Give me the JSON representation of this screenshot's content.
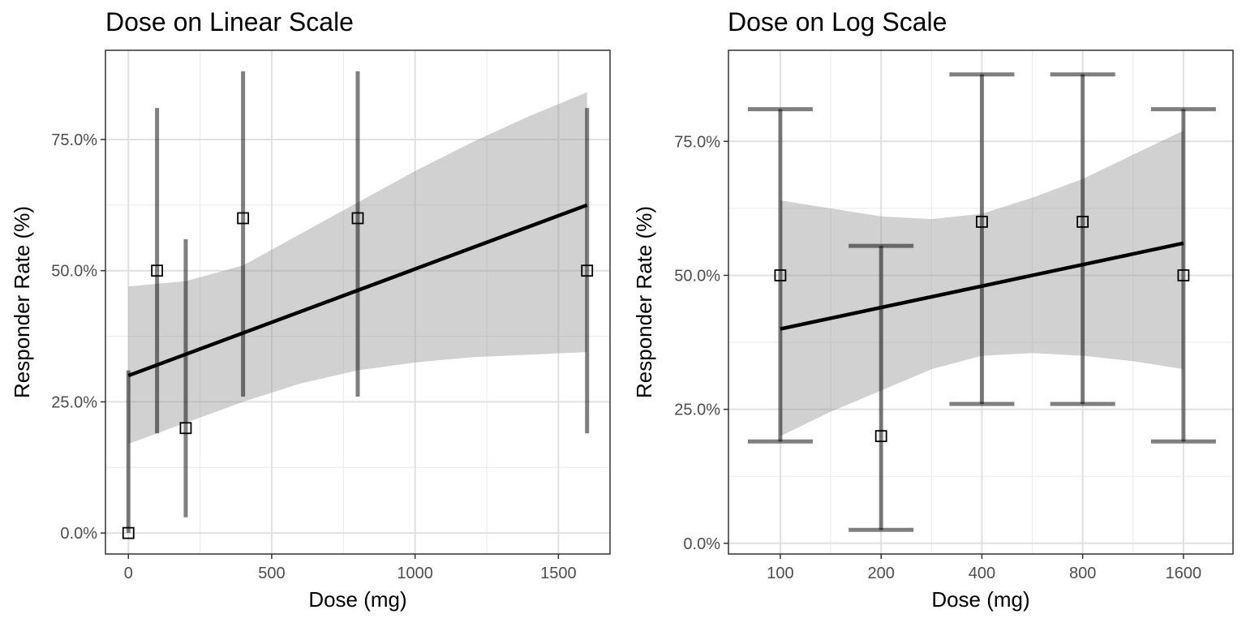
{
  "chart_data": [
    {
      "type": "scatter",
      "title": "Dose on Linear Scale",
      "xlabel": "Dose (mg)",
      "ylabel": "Responder Rate (%)",
      "x_scale": "linear",
      "xlim": [
        -80,
        1680
      ],
      "ylim": [
        -0.04,
        0.92
      ],
      "x_ticks": [
        0,
        500,
        1000,
        1500
      ],
      "x_tick_labels": [
        "0",
        "500",
        "1000",
        "1500"
      ],
      "y_ticks": [
        0,
        0.25,
        0.5,
        0.75
      ],
      "y_tick_labels": [
        "0.0%",
        "25.0%",
        "50.0%",
        "75.0%"
      ],
      "grid": true,
      "error_bar_caps": false,
      "points": [
        {
          "x": 0,
          "y": 0.0,
          "lower": 0.0,
          "upper": 0.31
        },
        {
          "x": 100,
          "y": 0.5,
          "lower": 0.19,
          "upper": 0.81
        },
        {
          "x": 200,
          "y": 0.2,
          "lower": 0.03,
          "upper": 0.56
        },
        {
          "x": 400,
          "y": 0.6,
          "lower": 0.26,
          "upper": 0.88
        },
        {
          "x": 800,
          "y": 0.6,
          "lower": 0.26,
          "upper": 0.88
        },
        {
          "x": 1600,
          "y": 0.5,
          "lower": 0.19,
          "upper": 0.81
        }
      ],
      "fit_line": {
        "x": [
          0,
          1600
        ],
        "y": [
          0.3,
          0.625
        ]
      },
      "confidence_band": [
        {
          "x": 0,
          "lower": 0.17,
          "upper": 0.47
        },
        {
          "x": 200,
          "lower": 0.21,
          "upper": 0.48
        },
        {
          "x": 400,
          "lower": 0.25,
          "upper": 0.51
        },
        {
          "x": 600,
          "lower": 0.285,
          "upper": 0.57
        },
        {
          "x": 800,
          "lower": 0.31,
          "upper": 0.63
        },
        {
          "x": 1000,
          "lower": 0.325,
          "upper": 0.69
        },
        {
          "x": 1200,
          "lower": 0.335,
          "upper": 0.745
        },
        {
          "x": 1400,
          "lower": 0.34,
          "upper": 0.795
        },
        {
          "x": 1600,
          "lower": 0.345,
          "upper": 0.84
        }
      ]
    },
    {
      "type": "scatter",
      "title": "Dose on Log Scale",
      "xlabel": "Dose (mg)",
      "ylabel": "Responder Rate (%)",
      "x_scale": "log2",
      "xlim": [
        70,
        2250
      ],
      "ylim": [
        -0.02,
        0.92
      ],
      "x_ticks": [
        100,
        200,
        400,
        800,
        1600
      ],
      "x_tick_labels": [
        "100",
        "200",
        "400",
        "800",
        "1600"
      ],
      "y_ticks": [
        0,
        0.25,
        0.5,
        0.75
      ],
      "y_tick_labels": [
        "0.0%",
        "25.0%",
        "50.0%",
        "75.0%"
      ],
      "grid": true,
      "error_bar_caps": true,
      "points": [
        {
          "x": 100,
          "y": 0.5,
          "lower": 0.19,
          "upper": 0.81
        },
        {
          "x": 200,
          "y": 0.2,
          "lower": 0.025,
          "upper": 0.555
        },
        {
          "x": 400,
          "y": 0.6,
          "lower": 0.26,
          "upper": 0.875
        },
        {
          "x": 800,
          "y": 0.6,
          "lower": 0.26,
          "upper": 0.875
        },
        {
          "x": 1600,
          "y": 0.5,
          "lower": 0.19,
          "upper": 0.81
        }
      ],
      "fit_line": {
        "x": [
          100,
          1600
        ],
        "y": [
          0.4,
          0.56
        ]
      },
      "confidence_band": [
        {
          "x": 100,
          "lower": 0.2,
          "upper": 0.64
        },
        {
          "x": 141,
          "lower": 0.245,
          "upper": 0.625
        },
        {
          "x": 200,
          "lower": 0.285,
          "upper": 0.61
        },
        {
          "x": 283,
          "lower": 0.325,
          "upper": 0.605
        },
        {
          "x": 400,
          "lower": 0.35,
          "upper": 0.615
        },
        {
          "x": 566,
          "lower": 0.355,
          "upper": 0.645
        },
        {
          "x": 800,
          "lower": 0.35,
          "upper": 0.68
        },
        {
          "x": 1131,
          "lower": 0.34,
          "upper": 0.725
        },
        {
          "x": 1600,
          "lower": 0.325,
          "upper": 0.77
        }
      ]
    }
  ]
}
